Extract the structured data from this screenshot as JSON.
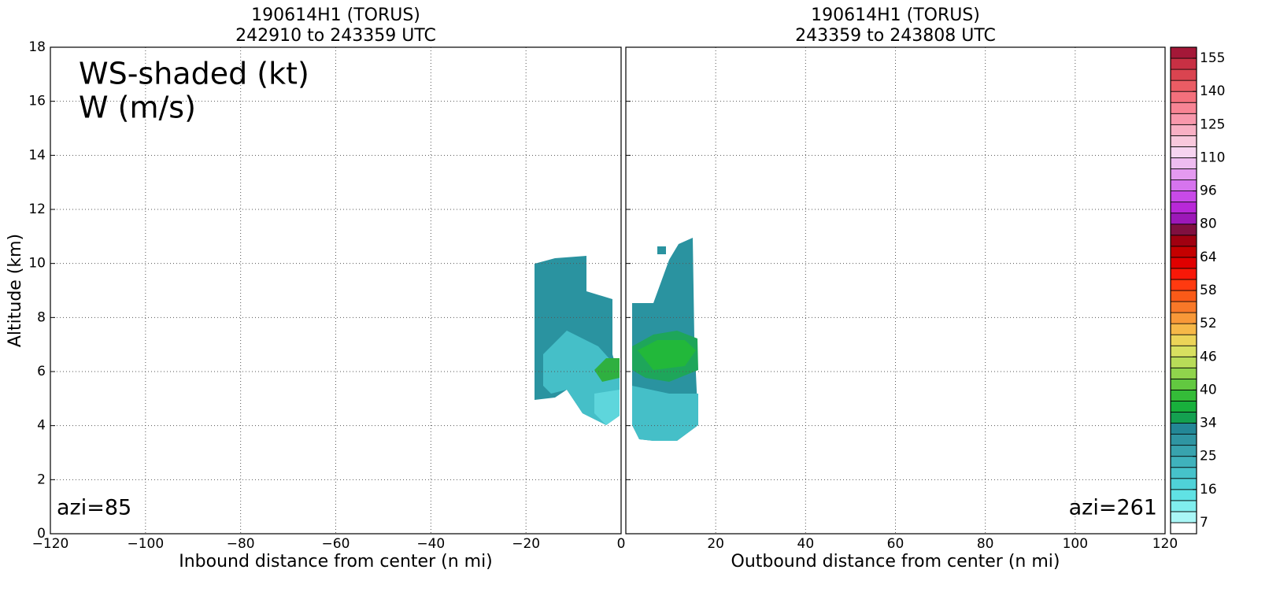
{
  "chart_data": [
    {
      "type": "cross-section",
      "title": "190614H1 (TORUS)",
      "subtitle": "242910 to 243359 UTC",
      "xlabel": "Inbound distance from center (n mi)",
      "ylabel": "Altitude (km)",
      "annotations": [
        "WS-shaded (kt)",
        "W (m/s)",
        "azi=85"
      ],
      "xlim": [
        -120,
        0
      ],
      "ylim": [
        0,
        18
      ],
      "xticks": [
        {
          "value": -120,
          "label": "−120"
        },
        {
          "value": -100,
          "label": "−100"
        },
        {
          "value": -80,
          "label": "−80"
        },
        {
          "value": -60,
          "label": "−60"
        },
        {
          "value": -40,
          "label": "−40"
        },
        {
          "value": -20,
          "label": "−20"
        },
        0
      ],
      "yticks": [
        0,
        2,
        4,
        6,
        8,
        10,
        12,
        14,
        16,
        18
      ],
      "grid": true
    },
    {
      "type": "cross-section",
      "title": "190614H1 (TORUS)",
      "subtitle": "243359 to 243808 UTC",
      "xlabel": "Outbound distance from center (n mi)",
      "annotations": [
        "azi=261"
      ],
      "xlim": [
        0,
        120
      ],
      "ylim": [
        0,
        18
      ],
      "xticks": [
        20,
        40,
        60,
        80,
        100,
        120
      ],
      "yticks": [
        0,
        2,
        4,
        6,
        8,
        10,
        12,
        14,
        16,
        18
      ],
      "grid": true
    },
    {
      "type": "colorbar",
      "ticks": [
        7,
        16,
        25,
        34,
        40,
        46,
        52,
        58,
        64,
        80,
        96,
        110,
        125,
        140,
        155
      ],
      "colors": [
        "#ffffff",
        "#aaf7f7",
        "#80eeee",
        "#60e2e4",
        "#4fd2d8",
        "#46c2ca",
        "#3fb2bc",
        "#38a3ae",
        "#2f95a2",
        "#238796",
        "#14a050",
        "#18b03c",
        "#34bc38",
        "#62c840",
        "#90d44c",
        "#b8dc58",
        "#d8e060",
        "#ecd458",
        "#f6b848",
        "#f89838",
        "#f87828",
        "#fa5a18",
        "#ff3a10",
        "#f81808",
        "#e00000",
        "#c40000",
        "#a00010",
        "#801040",
        "#9c18b8",
        "#b828d8",
        "#c84ae8",
        "#d674ee",
        "#e49af0",
        "#eebcf0",
        "#f6d4f0",
        "#f8c8dc",
        "#f8b0c4",
        "#f898ac",
        "#f88494",
        "#f4707c",
        "#ea5c64",
        "#da4450",
        "#c83044",
        "#a41838"
      ]
    }
  ]
}
